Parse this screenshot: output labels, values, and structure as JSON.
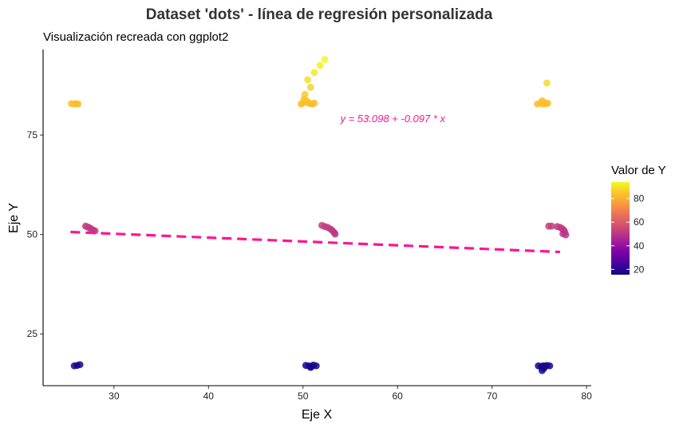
{
  "chart_data": {
    "type": "scatter",
    "title": "Dataset 'dots' - línea de regresión personalizada",
    "subtitle": "Visualización recreada con ggplot2",
    "xlabel": "Eje X",
    "ylabel": "Eje Y",
    "xlim": [
      22.5,
      80.5
    ],
    "ylim": [
      12,
      96.5
    ],
    "xticks": [
      30,
      40,
      50,
      60,
      70,
      80
    ],
    "yticks": [
      25,
      50,
      75
    ],
    "grid": false,
    "legend": {
      "title": "Valor de Y",
      "position": "right",
      "ticks": [
        20,
        40,
        60,
        80
      ],
      "range": [
        15.5,
        94
      ]
    },
    "regression": {
      "intercept": 53.098,
      "slope": -0.097,
      "x_range": [
        25.4,
        77.2
      ],
      "color": "#FF1493",
      "style": "dashed",
      "label": "y = 53.098 + -0.097 * x",
      "label_x": 59.5,
      "label_y": 79
    },
    "points": [
      {
        "x": 25.5,
        "y": 82.9
      },
      {
        "x": 25.8,
        "y": 82.8
      },
      {
        "x": 26.0,
        "y": 82.9
      },
      {
        "x": 26.2,
        "y": 82.8
      },
      {
        "x": 27.0,
        "y": 52.1
      },
      {
        "x": 27.2,
        "y": 51.9
      },
      {
        "x": 27.4,
        "y": 51.7
      },
      {
        "x": 27.6,
        "y": 51.4
      },
      {
        "x": 27.8,
        "y": 51.1
      },
      {
        "x": 28.0,
        "y": 50.9
      },
      {
        "x": 25.8,
        "y": 17.0
      },
      {
        "x": 26.1,
        "y": 17.1
      },
      {
        "x": 26.4,
        "y": 17.3
      },
      {
        "x": 50.2,
        "y": 85.2
      },
      {
        "x": 50.5,
        "y": 88.9
      },
      {
        "x": 50.8,
        "y": 87.0
      },
      {
        "x": 51.2,
        "y": 90.7
      },
      {
        "x": 51.8,
        "y": 92.5
      },
      {
        "x": 52.3,
        "y": 94.0
      },
      {
        "x": 49.8,
        "y": 82.8
      },
      {
        "x": 50.0,
        "y": 83.1
      },
      {
        "x": 50.2,
        "y": 83.3
      },
      {
        "x": 50.4,
        "y": 83.6
      },
      {
        "x": 50.6,
        "y": 83.0
      },
      {
        "x": 50.8,
        "y": 82.9
      },
      {
        "x": 51.0,
        "y": 82.8
      },
      {
        "x": 51.2,
        "y": 83.0
      },
      {
        "x": 50.1,
        "y": 84.0
      },
      {
        "x": 52.0,
        "y": 52.3
      },
      {
        "x": 52.3,
        "y": 52.0
      },
      {
        "x": 52.6,
        "y": 51.8
      },
      {
        "x": 52.9,
        "y": 51.4
      },
      {
        "x": 53.1,
        "y": 51.0
      },
      {
        "x": 53.3,
        "y": 50.5
      },
      {
        "x": 53.4,
        "y": 50.1
      },
      {
        "x": 50.3,
        "y": 17.1
      },
      {
        "x": 50.6,
        "y": 17.0
      },
      {
        "x": 50.9,
        "y": 16.8
      },
      {
        "x": 51.1,
        "y": 17.2
      },
      {
        "x": 51.4,
        "y": 17.0
      },
      {
        "x": 50.8,
        "y": 16.6
      },
      {
        "x": 75.8,
        "y": 88.1
      },
      {
        "x": 74.8,
        "y": 82.8
      },
      {
        "x": 75.1,
        "y": 83.0
      },
      {
        "x": 75.3,
        "y": 83.6
      },
      {
        "x": 75.5,
        "y": 83.2
      },
      {
        "x": 75.7,
        "y": 82.9
      },
      {
        "x": 75.9,
        "y": 83.0
      },
      {
        "x": 75.4,
        "y": 82.8
      },
      {
        "x": 76.0,
        "y": 52.1
      },
      {
        "x": 76.3,
        "y": 52.1
      },
      {
        "x": 76.9,
        "y": 52.0
      },
      {
        "x": 77.2,
        "y": 51.8
      },
      {
        "x": 77.4,
        "y": 51.5
      },
      {
        "x": 77.6,
        "y": 51.1
      },
      {
        "x": 77.7,
        "y": 50.6
      },
      {
        "x": 77.5,
        "y": 50.2
      },
      {
        "x": 77.8,
        "y": 49.9
      },
      {
        "x": 74.9,
        "y": 17.0
      },
      {
        "x": 75.2,
        "y": 16.8
      },
      {
        "x": 75.4,
        "y": 17.0
      },
      {
        "x": 75.6,
        "y": 16.9
      },
      {
        "x": 75.8,
        "y": 17.1
      },
      {
        "x": 76.1,
        "y": 17.0
      },
      {
        "x": 75.3,
        "y": 15.8
      },
      {
        "x": 75.5,
        "y": 16.4
      }
    ]
  }
}
